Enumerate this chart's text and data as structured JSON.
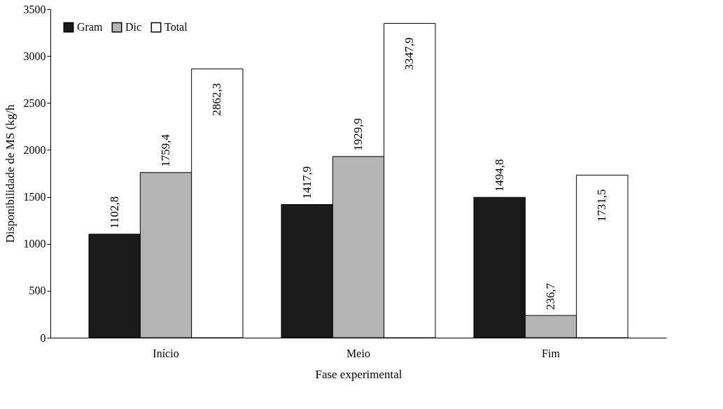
{
  "chart_data": {
    "type": "bar",
    "xlabel": "Fase experimental",
    "ylabel": "Disponibilidade de MS (kg/h",
    "categories": [
      "Início",
      "Meio",
      "Fim"
    ],
    "series": [
      {
        "name": "Gram",
        "color": "#1a1a1a",
        "values": [
          1102.8,
          1417.9,
          1494.8
        ],
        "value_labels": [
          "1102,8",
          "1417,9",
          "1494,8"
        ]
      },
      {
        "name": "Dic",
        "color": "#b4b4b4",
        "values": [
          1759.4,
          1929.9,
          236.7
        ],
        "value_labels": [
          "1759,4",
          "1929,9",
          "236,7"
        ]
      },
      {
        "name": "Total",
        "color": "#ffffff",
        "values": [
          2862.3,
          3347.9,
          1731.5
        ],
        "value_labels": [
          "2862,3",
          "3347,9",
          "1731,5"
        ]
      }
    ],
    "ylim": [
      0,
      3500
    ],
    "yticks": [
      0,
      500,
      1000,
      1500,
      2000,
      2500,
      3000,
      3500
    ],
    "grid": false,
    "legend": "top left"
  }
}
